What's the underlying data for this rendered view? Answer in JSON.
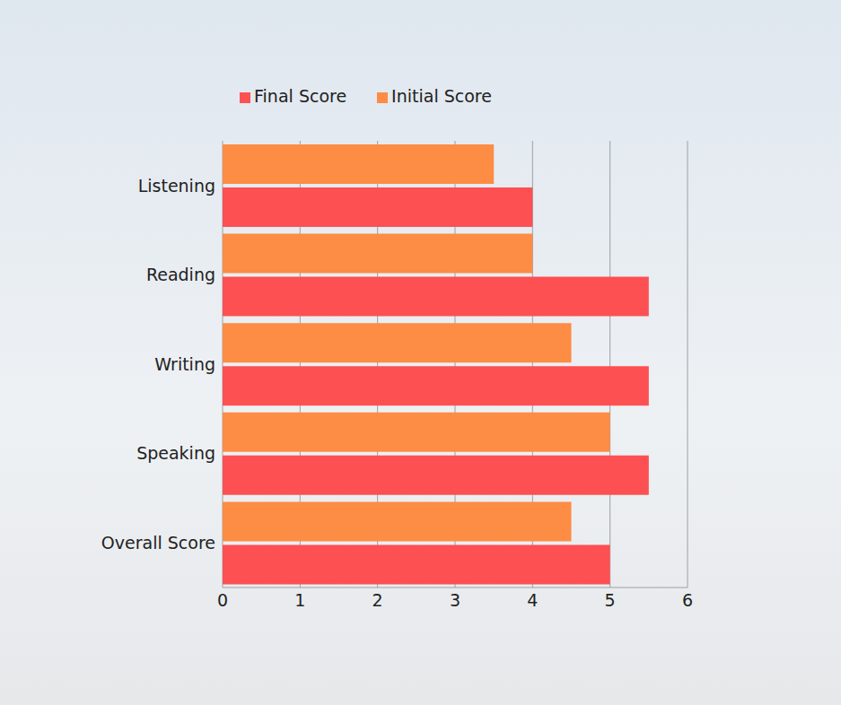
{
  "chart_data": {
    "type": "bar",
    "orientation": "horizontal",
    "categories": [
      "Listening",
      "Reading",
      "Writing",
      "Speaking",
      "Overall Score"
    ],
    "series": [
      {
        "name": "Initial Score",
        "color": "#fd8c44",
        "values": [
          3.5,
          4,
          4.5,
          5,
          4.5
        ]
      },
      {
        "name": "Final Score",
        "color": "#fd5052",
        "values": [
          4,
          5.5,
          5.5,
          5.5,
          5
        ]
      }
    ],
    "xlim": [
      0,
      6
    ],
    "xticks": [
      0,
      1,
      2,
      3,
      4,
      5,
      6
    ],
    "grid": true,
    "legend": "top"
  }
}
